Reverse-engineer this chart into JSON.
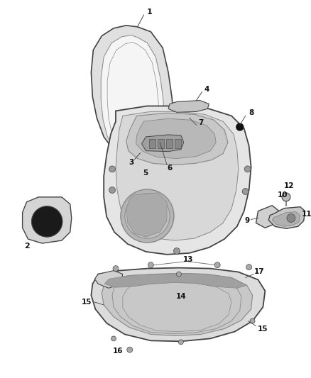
{
  "bg_color": "#ffffff",
  "part_gray": "#888888",
  "part_dark": "#444444",
  "part_light": "#e8e8e8",
  "part_mid": "#cccccc",
  "part_fill": "#d8d8d8",
  "line_color": "#666666"
}
